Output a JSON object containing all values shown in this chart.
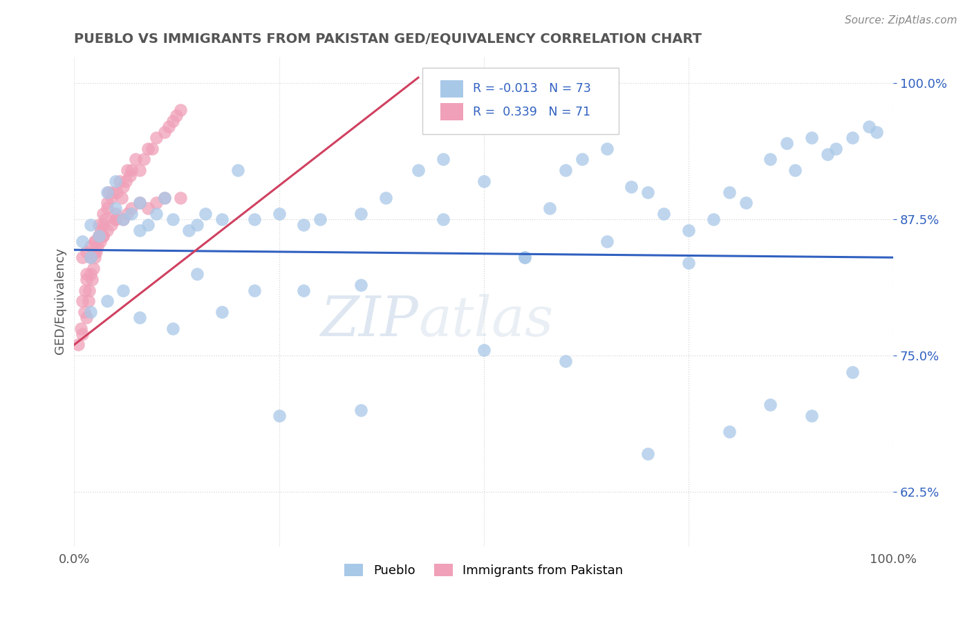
{
  "title": "PUEBLO VS IMMIGRANTS FROM PAKISTAN GED/EQUIVALENCY CORRELATION CHART",
  "source_text": "Source: ZipAtlas.com",
  "ylabel": "GED/Equivalency",
  "pueblo_color": "#a8c8e8",
  "pakistan_color": "#f0a0b8",
  "trend_blue": "#3060c0",
  "trend_pink": "#d04060",
  "xlim": [
    0.0,
    1.0
  ],
  "ylim": [
    0.575,
    1.025
  ],
  "yticks": [
    0.625,
    0.75,
    0.875,
    1.0
  ],
  "ytick_labels": [
    "62.5%",
    "75.0%",
    "87.5%",
    "100.0%"
  ],
  "xticks": [
    0.0,
    0.25,
    0.5,
    0.75,
    1.0
  ],
  "xtick_labels": [
    "0.0%",
    "",
    "",
    "",
    "100.0%"
  ],
  "pueblo_x": [
    0.01,
    0.02,
    0.02,
    0.03,
    0.04,
    0.05,
    0.05,
    0.06,
    0.07,
    0.08,
    0.08,
    0.09,
    0.1,
    0.11,
    0.12,
    0.14,
    0.15,
    0.16,
    0.18,
    0.2,
    0.22,
    0.25,
    0.28,
    0.3,
    0.35,
    0.38,
    0.42,
    0.45,
    0.5,
    0.55,
    0.58,
    0.6,
    0.62,
    0.65,
    0.68,
    0.7,
    0.72,
    0.75,
    0.78,
    0.8,
    0.82,
    0.85,
    0.87,
    0.88,
    0.9,
    0.92,
    0.93,
    0.95,
    0.97,
    0.98,
    0.02,
    0.04,
    0.06,
    0.08,
    0.12,
    0.18,
    0.22,
    0.28,
    0.35,
    0.45,
    0.55,
    0.65,
    0.75,
    0.85,
    0.9,
    0.95,
    0.5,
    0.6,
    0.7,
    0.8,
    0.35,
    0.25,
    0.15
  ],
  "pueblo_y": [
    0.855,
    0.87,
    0.84,
    0.86,
    0.9,
    0.91,
    0.885,
    0.875,
    0.88,
    0.865,
    0.89,
    0.87,
    0.88,
    0.895,
    0.875,
    0.865,
    0.87,
    0.88,
    0.875,
    0.92,
    0.875,
    0.88,
    0.87,
    0.875,
    0.88,
    0.895,
    0.92,
    0.93,
    0.91,
    0.84,
    0.885,
    0.92,
    0.93,
    0.94,
    0.905,
    0.9,
    0.88,
    0.865,
    0.875,
    0.9,
    0.89,
    0.93,
    0.945,
    0.92,
    0.95,
    0.935,
    0.94,
    0.95,
    0.96,
    0.955,
    0.79,
    0.8,
    0.81,
    0.785,
    0.775,
    0.79,
    0.81,
    0.81,
    0.815,
    0.875,
    0.84,
    0.855,
    0.835,
    0.705,
    0.695,
    0.735,
    0.755,
    0.745,
    0.66,
    0.68,
    0.7,
    0.695,
    0.825
  ],
  "pakistan_x": [
    0.005,
    0.008,
    0.01,
    0.01,
    0.012,
    0.013,
    0.015,
    0.015,
    0.017,
    0.018,
    0.02,
    0.02,
    0.022,
    0.023,
    0.025,
    0.025,
    0.027,
    0.028,
    0.03,
    0.03,
    0.032,
    0.033,
    0.035,
    0.035,
    0.038,
    0.04,
    0.04,
    0.042,
    0.045,
    0.047,
    0.05,
    0.052,
    0.055,
    0.058,
    0.06,
    0.063,
    0.065,
    0.068,
    0.07,
    0.075,
    0.08,
    0.085,
    0.09,
    0.095,
    0.1,
    0.11,
    0.115,
    0.12,
    0.125,
    0.13,
    0.01,
    0.015,
    0.02,
    0.025,
    0.03,
    0.035,
    0.04,
    0.045,
    0.05,
    0.06,
    0.07,
    0.08,
    0.09,
    0.1,
    0.11,
    0.13,
    0.015,
    0.025,
    0.035,
    0.05,
    0.065
  ],
  "pakistan_y": [
    0.76,
    0.775,
    0.8,
    0.77,
    0.79,
    0.81,
    0.785,
    0.82,
    0.8,
    0.81,
    0.825,
    0.84,
    0.82,
    0.83,
    0.84,
    0.855,
    0.845,
    0.85,
    0.86,
    0.87,
    0.855,
    0.865,
    0.87,
    0.88,
    0.875,
    0.885,
    0.89,
    0.9,
    0.895,
    0.9,
    0.88,
    0.9,
    0.91,
    0.895,
    0.905,
    0.91,
    0.92,
    0.915,
    0.92,
    0.93,
    0.92,
    0.93,
    0.94,
    0.94,
    0.95,
    0.955,
    0.96,
    0.965,
    0.97,
    0.975,
    0.84,
    0.845,
    0.85,
    0.855,
    0.86,
    0.86,
    0.865,
    0.87,
    0.875,
    0.875,
    0.885,
    0.89,
    0.885,
    0.89,
    0.895,
    0.895,
    0.825,
    0.845,
    0.86,
    0.875,
    0.88
  ],
  "blue_trend_x": [
    0.0,
    1.0
  ],
  "blue_trend_y": [
    0.847,
    0.84
  ],
  "pink_trend_x": [
    0.0,
    0.42
  ],
  "pink_trend_y": [
    0.76,
    1.005
  ],
  "watermark_zip": "ZIP",
  "watermark_atlas": "atlas",
  "background_color": "#ffffff",
  "title_color": "#555555"
}
